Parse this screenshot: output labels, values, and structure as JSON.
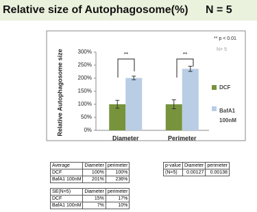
{
  "chart_data": {
    "type": "bar",
    "title": "Relative size of Autophagosome(%)",
    "subtitle": "N = 5",
    "y_label": "Relative Autophagosome size",
    "categories": [
      "Diameter",
      "Perimeter"
    ],
    "series": [
      {
        "name": "DCF",
        "color": "#77933c",
        "values": [
          100,
          100
        ],
        "errors": [
          15,
          17
        ]
      },
      {
        "name": "BafA1 100nM",
        "color": "#b9cde5",
        "values": [
          201,
          236
        ],
        "errors": [
          7,
          10
        ]
      }
    ],
    "ylim": [
      0,
      300
    ],
    "yticks": [
      {
        "value": 0,
        "label": "0%"
      },
      {
        "value": 50,
        "label": "50%"
      },
      {
        "value": 100,
        "label": "100%"
      },
      {
        "value": 150,
        "label": "150%"
      },
      {
        "value": 200,
        "label": "200%"
      },
      {
        "value": 250,
        "label": "250%"
      },
      {
        "value": 300,
        "label": "300%"
      }
    ],
    "annotations": [
      "** p < 0.01",
      "N= 5",
      "**",
      "**"
    ],
    "legend": "right"
  },
  "tables": [
    {
      "rows": [
        [
          "Average",
          "Diameter",
          "perimeter"
        ],
        [
          "DCF",
          "100%",
          "100%"
        ],
        [
          "BafA1 100nM",
          "201%",
          "236%"
        ]
      ]
    },
    {
      "rows": [
        [
          "SE(N=5)",
          "Diameter",
          "perimeter"
        ],
        [
          "DCF",
          "15%",
          "17%"
        ],
        [
          "BafA1 100nM",
          "7%",
          "10%"
        ]
      ]
    },
    {
      "rows": [
        [
          "p-value",
          "Diameter",
          "perimeter"
        ],
        [
          "(N=5)",
          "0.00127",
          "0.00138"
        ]
      ]
    }
  ]
}
